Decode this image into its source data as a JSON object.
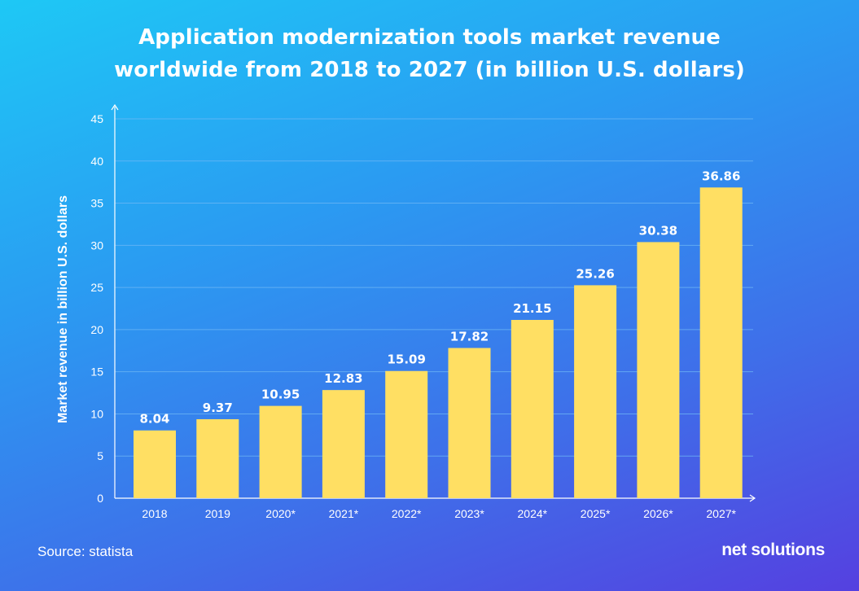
{
  "chart_data": {
    "type": "bar",
    "title_line1": "Application modernization tools market revenue",
    "title_line2": "worldwide from 2018 to 2027 (in billion U.S. dollars)",
    "ylabel": "Market revenue in billion U.S. dollars",
    "xlabel": "",
    "categories": [
      "2018",
      "2019",
      "2020*",
      "2021*",
      "2022*",
      "2023*",
      "2024*",
      "2025*",
      "2026*",
      "2027*"
    ],
    "values": [
      8.04,
      9.37,
      10.95,
      12.83,
      15.09,
      17.82,
      21.15,
      25.26,
      30.38,
      36.86
    ],
    "value_labels": [
      "8.04",
      "9.37",
      "10.95",
      "12.83",
      "15.09",
      "17.82",
      "21.15",
      "25.26",
      "30.38",
      "36.86"
    ],
    "ylim": [
      0,
      45
    ],
    "yticks": [
      0,
      5,
      10,
      15,
      20,
      25,
      30,
      35,
      40,
      45
    ],
    "grid": true,
    "bar_color": "#ffdf63",
    "grid_color": "#6fb8f5"
  },
  "footer": {
    "source": "Source: statista",
    "brand": "net solutions"
  }
}
